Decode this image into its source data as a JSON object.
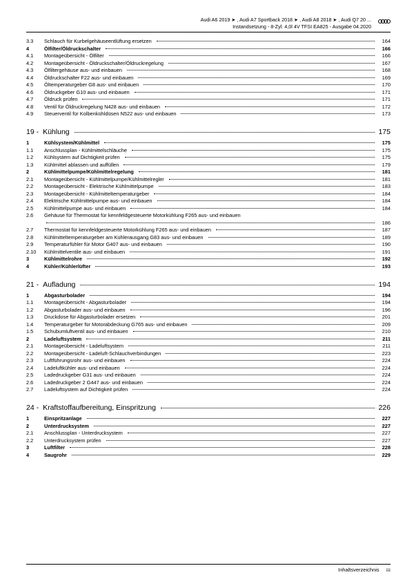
{
  "header": {
    "line1": "Audi A6 2019 ➤ , Audi A7 Sportback 2018 ➤ , Audi A8 2018 ➤ , Audi Q7 20 ...",
    "line2": "Instandsetzung - 8-Zyl. 4,0l 4V TFSI EA825 - Ausgabe 04.2020"
  },
  "footer": {
    "label": "Inhaltsverzeichnis",
    "page": "iii"
  },
  "rows": [
    {
      "n": "3.3",
      "t": "Schlauch für Kurbelgehäuseentlüftung ersetzen",
      "p": "164",
      "b": false,
      "c": false
    },
    {
      "n": "4",
      "t": "Ölfilter/Öldruckschalter",
      "p": "166",
      "b": true,
      "c": false
    },
    {
      "n": "4.1",
      "t": "Montageübersicht - Ölfilter",
      "p": "166",
      "b": false,
      "c": false
    },
    {
      "n": "4.2",
      "t": "Montageübersicht - Öldruckschalter/Öldruckregelung",
      "p": "167",
      "b": false,
      "c": false
    },
    {
      "n": "4.3",
      "t": "Ölfiltergehäuse aus- und einbauen",
      "p": "168",
      "b": false,
      "c": false
    },
    {
      "n": "4.4",
      "t": "Öldruckschalter F22 aus- und einbauen",
      "p": "169",
      "b": false,
      "c": false
    },
    {
      "n": "4.5",
      "t": "Öltemperaturgeber G8 aus- und einbauen",
      "p": "170",
      "b": false,
      "c": false
    },
    {
      "n": "4.6",
      "t": "Öldruckgeber G10 aus- und einbauen",
      "p": "171",
      "b": false,
      "c": false
    },
    {
      "n": "4.7",
      "t": "Öldruck prüfen",
      "p": "171",
      "b": false,
      "c": false
    },
    {
      "n": "4.8",
      "t": "Ventil für Öldruckregelung N428 aus- und einbauen",
      "p": "172",
      "b": false,
      "c": false
    },
    {
      "n": "4.9",
      "t": "Steuerventil für Kolbenkühldüsen N522 aus- und einbauen",
      "p": "173",
      "b": false,
      "c": false
    },
    {
      "n": "19 -",
      "t": "Kühlung",
      "p": "175",
      "b": false,
      "c": true
    },
    {
      "n": "1",
      "t": "Kühlsystem/Kühlmittel",
      "p": "175",
      "b": true,
      "c": false
    },
    {
      "n": "1.1",
      "t": "Anschlussplan - Kühlmittelschläuche",
      "p": "175",
      "b": false,
      "c": false
    },
    {
      "n": "1.2",
      "t": "Kühlsystem auf Dichtigkeit prüfen",
      "p": "175",
      "b": false,
      "c": false
    },
    {
      "n": "1.3",
      "t": "Kühlmittel ablassen und auffüllen",
      "p": "179",
      "b": false,
      "c": false
    },
    {
      "n": "2",
      "t": "Kühlmittelpumpe/Kühlmittelregelung",
      "p": "181",
      "b": true,
      "c": false
    },
    {
      "n": "2.1",
      "t": "Montageübersicht - Kühlmittelpumpe/Kühlmittelregler",
      "p": "181",
      "b": false,
      "c": false
    },
    {
      "n": "2.2",
      "t": "Montageübersicht - Elektrische Kühlmittelpumpe",
      "p": "183",
      "b": false,
      "c": false
    },
    {
      "n": "2.3",
      "t": "Montageübersicht - Kühlmitteltemperaturgeber",
      "p": "184",
      "b": false,
      "c": false
    },
    {
      "n": "2.4",
      "t": "Elektrische Kühlmittelpumpe aus- und einbauen",
      "p": "184",
      "b": false,
      "c": false
    },
    {
      "n": "2.5",
      "t": "Kühlmittelpumpe aus- und einbauen",
      "p": "184",
      "b": false,
      "c": false
    },
    {
      "n": "2.6",
      "t": "Gehäuse für Thermostat für kennfeldgesteuerte Motorkühlung F265 aus- und einbauen",
      "p": "",
      "b": false,
      "c": false,
      "nodots": true
    },
    {
      "n": "",
      "t": "",
      "p": "186",
      "b": false,
      "c": false,
      "cont": true
    },
    {
      "n": "2.7",
      "t": "Thermostat für kennfeldgesteuerte Motorkühlung F265 aus- und einbauen",
      "p": "187",
      "b": false,
      "c": false
    },
    {
      "n": "2.8",
      "t": "Kühlmitteltemperaturgeber am Kühlerausgang G83 aus- und einbauen",
      "p": "189",
      "b": false,
      "c": false
    },
    {
      "n": "2.9",
      "t": "Temperaturfühler für Motor G407 aus- und einbauen",
      "p": "190",
      "b": false,
      "c": false
    },
    {
      "n": "2.10",
      "t": "Kühlmittelventile aus- und einbauen",
      "p": "191",
      "b": false,
      "c": false
    },
    {
      "n": "3",
      "t": "Kühlmittelrohre",
      "p": "192",
      "b": true,
      "c": false
    },
    {
      "n": "4",
      "t": "Kühler/Kühlerlüfter",
      "p": "193",
      "b": true,
      "c": false
    },
    {
      "n": "21 -",
      "t": "Aufladung",
      "p": "194",
      "b": false,
      "c": true
    },
    {
      "n": "1",
      "t": "Abgasturbolader",
      "p": "194",
      "b": true,
      "c": false
    },
    {
      "n": "1.1",
      "t": "Montageübersicht - Abgasturbolader",
      "p": "194",
      "b": false,
      "c": false
    },
    {
      "n": "1.2",
      "t": "Abgasturbolader aus- und einbauen",
      "p": "196",
      "b": false,
      "c": false
    },
    {
      "n": "1.3",
      "t": "Druckdose für Abgasturbolader ersetzen",
      "p": "201",
      "b": false,
      "c": false
    },
    {
      "n": "1.4",
      "t": "Temperaturgeber für Motorabdeckung G765 aus- und einbauen",
      "p": "209",
      "b": false,
      "c": false
    },
    {
      "n": "1.5",
      "t": "Schubumluftventil aus- und einbauen",
      "p": "210",
      "b": false,
      "c": false
    },
    {
      "n": "2",
      "t": "Ladeluftsystem",
      "p": "211",
      "b": true,
      "c": false
    },
    {
      "n": "2.1",
      "t": "Montageübersicht - Ladeluftsystem",
      "p": "211",
      "b": false,
      "c": false
    },
    {
      "n": "2.2",
      "t": "Montageübersicht - Ladeluft-Schlauchverbindungen",
      "p": "223",
      "b": false,
      "c": false
    },
    {
      "n": "2.3",
      "t": "Luftführungsrohr aus- und einbauen",
      "p": "224",
      "b": false,
      "c": false
    },
    {
      "n": "2.4",
      "t": "Ladeluftkühler aus- und einbauen",
      "p": "224",
      "b": false,
      "c": false
    },
    {
      "n": "2.5",
      "t": "Ladedruckgeber G31 aus- und einbauen",
      "p": "224",
      "b": false,
      "c": false
    },
    {
      "n": "2.6",
      "t": "Ladedruckgeber 2 G447 aus- und einbauen",
      "p": "224",
      "b": false,
      "c": false
    },
    {
      "n": "2.7",
      "t": "Ladeluftsystem auf Dichtigkeit prüfen",
      "p": "224",
      "b": false,
      "c": false
    },
    {
      "n": "24 -",
      "t": "Kraftstoffaufbereitung, Einspritzung",
      "p": "226",
      "b": false,
      "c": true
    },
    {
      "n": "1",
      "t": "Einspritzanlage",
      "p": "227",
      "b": true,
      "c": false
    },
    {
      "n": "2",
      "t": "Unterdrucksystem",
      "p": "227",
      "b": true,
      "c": false
    },
    {
      "n": "2.1",
      "t": "Anschlussplan - Unterdrucksystem",
      "p": "227",
      "b": false,
      "c": false
    },
    {
      "n": "2.2",
      "t": "Unterdrucksystem prüfen",
      "p": "227",
      "b": false,
      "c": false
    },
    {
      "n": "3",
      "t": "Luftfilter",
      "p": "228",
      "b": true,
      "c": false
    },
    {
      "n": "4",
      "t": "Saugrohr",
      "p": "229",
      "b": true,
      "c": false
    }
  ]
}
